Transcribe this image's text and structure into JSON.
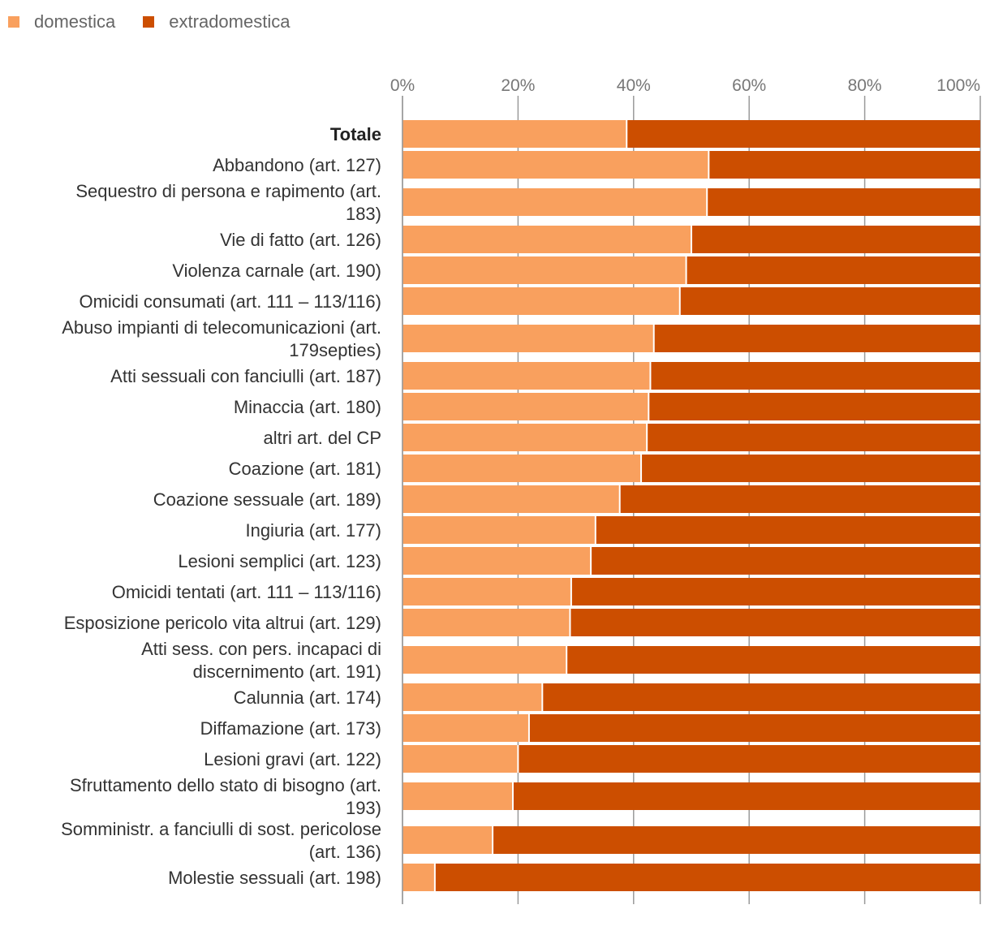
{
  "legend": {
    "items": [
      {
        "label": "domestica",
        "color": "#F9A05E"
      },
      {
        "label": "extradomestica",
        "color": "#CC4E00"
      }
    ]
  },
  "chart_data": {
    "type": "bar",
    "orientation": "horizontal",
    "stacked": true,
    "percent": true,
    "title": "",
    "xlabel": "",
    "ylabel": "",
    "xlim": [
      0,
      100
    ],
    "x_ticks": [
      "0%",
      "20%",
      "40%",
      "60%",
      "80%",
      "100%"
    ],
    "legend_position": "top-left",
    "categories": [
      "Totale",
      "Abbandono (art. 127)",
      "Sequestro di persona e rapimento (art. 183)",
      "Vie di fatto (art. 126)",
      "Violenza carnale (art. 190)",
      "Omicidi consumati (art. 111 – 113/116)",
      "Abuso impianti di telecomunicazioni (art. 179septies)",
      "Atti sessuali con fanciulli (art. 187)",
      "Minaccia (art. 180)",
      "altri art. del CP",
      "Coazione (art. 181)",
      "Coazione sessuale (art. 189)",
      "Ingiuria (art. 177)",
      "Lesioni semplici (art. 123)",
      "Omicidi tentati (art. 111 – 113/116)",
      "Esposizione pericolo vita altrui (art. 129)",
      "Atti sess. con pers. incapaci di discernimento (art. 191)",
      "Calunnia (art. 174)",
      "Diffamazione (art. 173)",
      "Lesioni gravi (art. 122)",
      "Sfruttamento dello stato di bisogno (art. 193)",
      "Somministr. a fanciulli di sost. pericolose (art. 136)",
      "Molestie sessuali (art. 198)"
    ],
    "label_lines": [
      [
        "Totale"
      ],
      [
        "Abbandono (art. 127)"
      ],
      [
        "Sequestro di persona e rapimento (art.",
        "183)"
      ],
      [
        "Vie di fatto (art. 126)"
      ],
      [
        "Violenza carnale (art. 190)"
      ],
      [
        "Omicidi consumati (art. 111 – 113/116)"
      ],
      [
        "Abuso impianti di telecomunicazioni (art.",
        "179septies)"
      ],
      [
        "Atti sessuali con fanciulli (art. 187)"
      ],
      [
        "Minaccia (art. 180)"
      ],
      [
        "altri art. del CP"
      ],
      [
        "Coazione (art. 181)"
      ],
      [
        "Coazione sessuale (art. 189)"
      ],
      [
        "Ingiuria (art. 177)"
      ],
      [
        "Lesioni semplici (art. 123)"
      ],
      [
        "Omicidi tentati (art. 111 – 113/116)"
      ],
      [
        "Esposizione pericolo vita altrui (art. 129)"
      ],
      [
        "Atti sess. con pers. incapaci di",
        "discernimento (art. 191)"
      ],
      [
        "Calunnia (art. 174)"
      ],
      [
        "Diffamazione (art. 173)"
      ],
      [
        "Lesioni gravi (art. 122)"
      ],
      [
        "Sfruttamento dello stato di bisogno (art.",
        "193)"
      ],
      [
        "Somministr. a fanciulli di sost. pericolose",
        "(art. 136)"
      ],
      [
        "Molestie sessuali (art. 198)"
      ]
    ],
    "bold_categories": [
      "Totale"
    ],
    "series": [
      {
        "name": "domestica",
        "color": "#F9A05E",
        "values": [
          38.8,
          53.0,
          52.7,
          50.0,
          49.1,
          48.0,
          43.5,
          42.9,
          42.6,
          42.3,
          41.3,
          37.6,
          33.4,
          32.6,
          29.2,
          29.0,
          28.4,
          24.2,
          21.9,
          20.0,
          19.1,
          15.6,
          5.6
        ]
      },
      {
        "name": "extradomestica",
        "color": "#CC4E00",
        "values": [
          61.2,
          47.0,
          47.3,
          50.0,
          50.9,
          52.0,
          56.5,
          57.1,
          57.4,
          57.7,
          58.7,
          62.4,
          66.6,
          67.4,
          70.8,
          71.0,
          71.6,
          75.8,
          78.1,
          80.0,
          80.9,
          84.4,
          94.4
        ]
      }
    ]
  }
}
